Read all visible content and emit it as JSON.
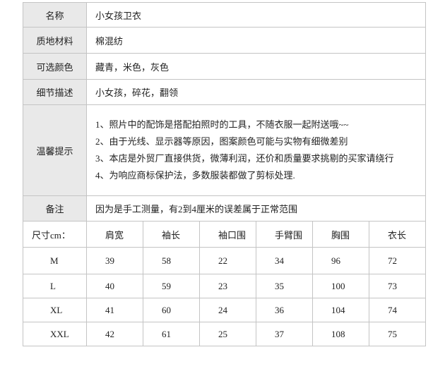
{
  "info": [
    {
      "label": "名称",
      "value": "小女孩卫衣"
    },
    {
      "label": "质地材料",
      "value": "棉混纺"
    },
    {
      "label": "可选颜色",
      "value": "藏青，米色，灰色"
    },
    {
      "label": "细节描述",
      "value": "小女孩，碎花，翻领"
    },
    {
      "label": "温馨提示",
      "lines": [
        "1、照片中的配饰是搭配拍照时的工具，不随衣服一起附送哦~~",
        "2、由于光线、显示器等原因，图案颜色可能与实物有细微差别",
        "3、本店是外贸厂直接供货，微薄利润，还价和质量要求挑剔的买家请绕行",
        "4、为响应商标保护法，多数服装都做了剪标处理."
      ]
    },
    {
      "label": "备注",
      "value": "因为是手工测量，有2到4厘米的误差属于正常范围"
    }
  ],
  "size_table": {
    "header": [
      "尺寸cm：",
      "肩宽",
      "袖长",
      "袖口围",
      "手臂围",
      "胸围",
      "衣长"
    ],
    "rows": [
      [
        "M",
        39,
        58,
        22,
        34,
        96,
        72
      ],
      [
        "L",
        40,
        59,
        23,
        35,
        100,
        73
      ],
      [
        "XL",
        41,
        60,
        24,
        36,
        104,
        74
      ],
      [
        "XXL",
        42,
        61,
        25,
        37,
        108,
        75
      ]
    ]
  }
}
